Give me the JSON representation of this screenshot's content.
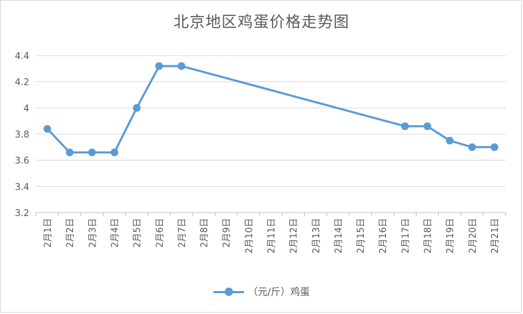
{
  "chart_data": {
    "type": "line",
    "title": "北京地区鸡蛋价格走势图",
    "categories": [
      "2月1日",
      "2月2日",
      "2月3日",
      "2月4日",
      "2月5日",
      "2月6日",
      "2月7日",
      "2月8日",
      "2月9日",
      "2月10日",
      "2月11日",
      "2月12日",
      "2月13日",
      "2月14日",
      "2月15日",
      "2月16日",
      "2月17日",
      "2月18日",
      "2月19日",
      "2月20日",
      "2月21日"
    ],
    "series": [
      {
        "name": "（元/斤）鸡蛋",
        "color": "#5b9bd5",
        "values": [
          3.84,
          3.66,
          3.66,
          3.66,
          4.0,
          4.32,
          4.32,
          null,
          null,
          null,
          null,
          null,
          null,
          null,
          null,
          null,
          3.86,
          3.86,
          3.75,
          3.7,
          3.7
        ]
      }
    ],
    "yticks": [
      "3.2",
      "3.4",
      "3.6",
      "3.8",
      "4",
      "4.2",
      "4.4"
    ],
    "ylim": [
      3.2,
      4.4
    ],
    "grid": true,
    "legend_position": "bottom"
  }
}
